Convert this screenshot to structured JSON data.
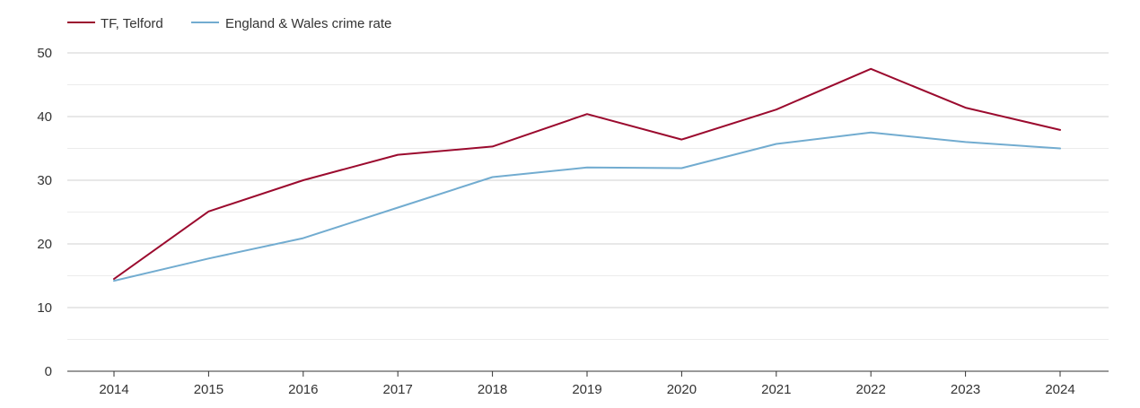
{
  "chart_data": {
    "type": "line",
    "title": "",
    "xlabel": "",
    "ylabel": "",
    "x": [
      "2014",
      "2015",
      "2016",
      "2017",
      "2018",
      "2019",
      "2020",
      "2021",
      "2022",
      "2023",
      "2024"
    ],
    "ylim": [
      0,
      50
    ],
    "yticks": [
      0,
      10,
      20,
      30,
      40,
      50
    ],
    "grid": true,
    "legend_position": "top-left",
    "series": [
      {
        "name": "TF, Telford",
        "color": "#9b0a2e",
        "values": [
          14.5,
          25.1,
          30.0,
          34.0,
          35.3,
          40.4,
          36.4,
          41.1,
          47.5,
          41.4,
          37.9
        ]
      },
      {
        "name": "England & Wales crime rate",
        "color": "#72acd0",
        "values": [
          14.2,
          17.7,
          20.9,
          25.7,
          30.5,
          32.0,
          31.9,
          35.7,
          37.5,
          36.0,
          35.0
        ]
      }
    ]
  }
}
